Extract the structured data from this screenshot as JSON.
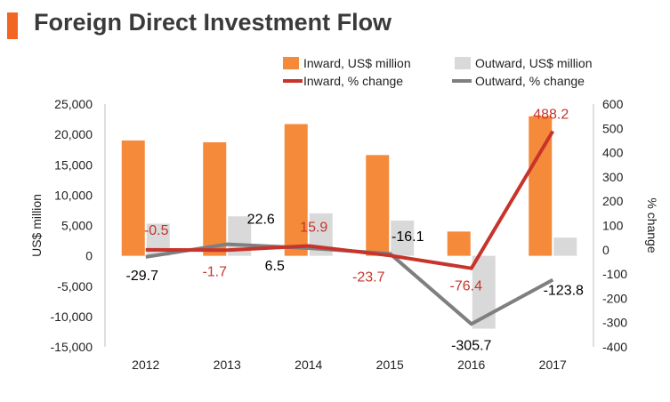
{
  "title": "Foreign Direct Investment Flow",
  "colors": {
    "accent": "#f26522",
    "inward_bar": "#f58a3a",
    "outward_bar": "#d9d9d9",
    "inward_line": "#c8332b",
    "outward_line": "#7f7f7f",
    "inward_label": "#c8332b",
    "outward_label": "#000000",
    "axis_text": "#222222"
  },
  "chart_data": {
    "type": "bar",
    "categories": [
      "2012",
      "2013",
      "2014",
      "2015",
      "2016",
      "2017"
    ],
    "series": [
      {
        "name": "Inward, US$ million",
        "type": "bar",
        "axis": "left",
        "values": [
          19000,
          18700,
          21700,
          16600,
          4000,
          23000
        ]
      },
      {
        "name": "Outward, US$ million",
        "type": "bar",
        "axis": "left",
        "values": [
          5300,
          6500,
          7000,
          5800,
          -12000,
          3000
        ]
      },
      {
        "name": "Inward, % change",
        "type": "line",
        "axis": "right",
        "values": [
          -0.5,
          -1.7,
          15.9,
          -23.7,
          -76.4,
          488.2
        ],
        "labels": [
          "-0.5",
          "-1.7",
          "15.9",
          "-23.7",
          "-76.4",
          "488.2"
        ]
      },
      {
        "name": "Outward, % change",
        "type": "line",
        "axis": "right",
        "values": [
          -29.7,
          22.6,
          6.5,
          -16.1,
          -305.7,
          -123.8
        ],
        "labels": [
          "-29.7",
          "22.6",
          "6.5",
          "-16.1",
          "-305.7",
          "-123.8"
        ]
      }
    ],
    "ylabel": "US$ million",
    "y2label": "% change",
    "ylim": [
      -15000,
      25000
    ],
    "yticks": [
      -15000,
      -10000,
      -5000,
      0,
      5000,
      10000,
      15000,
      20000,
      25000
    ],
    "ytick_labels": [
      "-15,000",
      "-10,000",
      "-5,000",
      "0",
      "5,000",
      "10,000",
      "15,000",
      "20,000",
      "25,000"
    ],
    "y2lim": [
      -400,
      600
    ],
    "y2ticks": [
      -400,
      -300,
      -200,
      -100,
      0,
      100,
      200,
      300,
      400,
      500,
      600
    ],
    "y2tick_labels": [
      "-400",
      "-300",
      "-200",
      "-100",
      "0",
      "100",
      "200",
      "300",
      "400",
      "500",
      "600"
    ],
    "legend_position": "top-right",
    "grid": false
  }
}
